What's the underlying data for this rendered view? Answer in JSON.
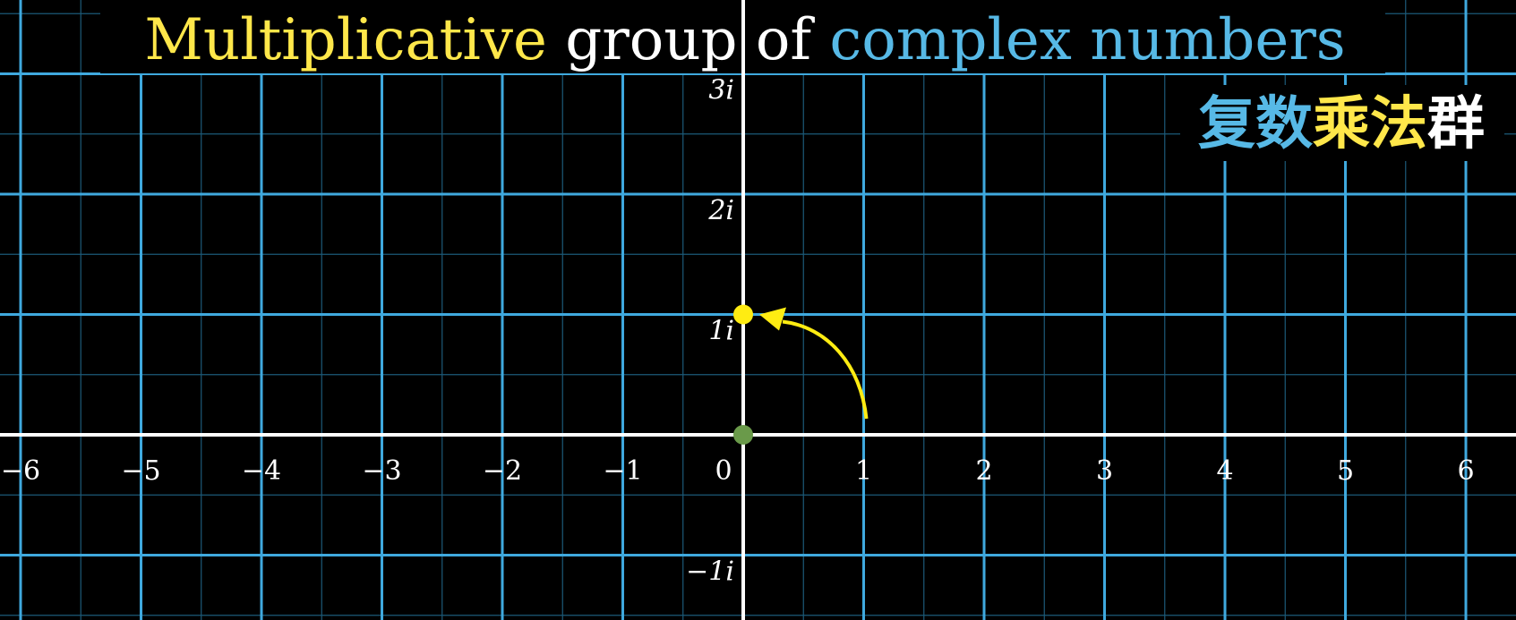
{
  "title": {
    "part1": "Multiplicative",
    "part2": " group of ",
    "part3": "complex numbers"
  },
  "subtitle": {
    "part1": "复数",
    "part2": "乘法",
    "part3": "群"
  },
  "axes": {
    "real_ticks": [
      "−6",
      "−5",
      "−4",
      "−3",
      "−2",
      "−1",
      "0",
      "1",
      "2",
      "3",
      "4",
      "5",
      "6"
    ],
    "imag_ticks": [
      "3i",
      "2i",
      "1i",
      "−1i"
    ]
  },
  "points": {
    "origin": {
      "re": 0,
      "im": 0
    },
    "moving": {
      "re": 0,
      "im": 1
    }
  },
  "arc": {
    "from": [
      1,
      0
    ],
    "to": [
      0,
      1
    ]
  },
  "colors": {
    "background": "#000000",
    "grid_major": "#3fa9de",
    "grid_minor": "#1c5a78",
    "axis": "#ffffff",
    "title_yellow": "#ffe74a",
    "title_white": "#ffffff",
    "title_blue": "#57b9e6",
    "origin_dot": "#6a9a4a",
    "point_yellow": "#ffec12"
  }
}
